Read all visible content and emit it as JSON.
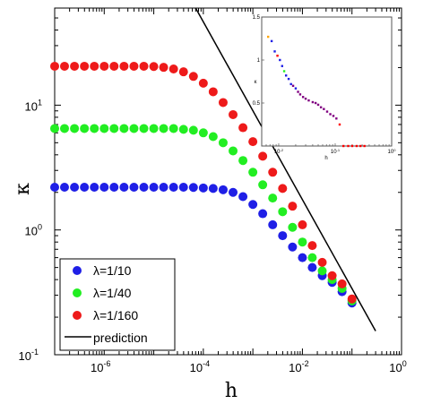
{
  "chart_data": [
    {
      "type": "scatter",
      "x_scale": "log",
      "y_scale": "log",
      "xlabel": "h",
      "ylabel": "κ",
      "xlim": [
        1e-07,
        1
      ],
      "ylim": [
        0.1,
        60
      ],
      "x_ticks": [
        {
          "base": "10",
          "exp": "-6"
        },
        {
          "base": "10",
          "exp": "-4"
        },
        {
          "base": "10",
          "exp": "-2"
        },
        {
          "base": "10",
          "exp": "0"
        }
      ],
      "y_ticks": [
        {
          "base": "10",
          "exp": "-1"
        },
        {
          "base": "10",
          "exp": "0"
        },
        {
          "base": "10",
          "exp": "1"
        }
      ],
      "legend_position": "bottom-left",
      "colors": {
        "lambda_10": "#1f1fe6",
        "lambda_40": "#22ee22",
        "lambda_160": "#ee1a1a",
        "prediction": "#000000"
      },
      "series": [
        {
          "name": "λ=1/10",
          "x": [
            1e-07,
            1.58e-07,
            2.51e-07,
            3.98e-07,
            6.31e-07,
            1e-06,
            1.58e-06,
            2.51e-06,
            3.98e-06,
            6.31e-06,
            1e-05,
            1.58e-05,
            2.51e-05,
            3.98e-05,
            6.31e-05,
            0.0001,
            0.000158,
            0.000251,
            0.000398,
            0.000631,
            0.001,
            0.00158,
            0.00251,
            0.00398,
            0.00631,
            0.01,
            0.0158,
            0.0251,
            0.0398,
            0.0631,
            0.1
          ],
          "y": [
            2.2,
            2.2,
            2.2,
            2.2,
            2.2,
            2.2,
            2.2,
            2.2,
            2.2,
            2.2,
            2.2,
            2.2,
            2.2,
            2.2,
            2.19,
            2.17,
            2.15,
            2.1,
            2.0,
            1.85,
            1.6,
            1.35,
            1.1,
            0.9,
            0.73,
            0.6,
            0.5,
            0.43,
            0.38,
            0.32,
            0.26
          ]
        },
        {
          "name": "λ=1/40",
          "x": [
            1e-07,
            1.58e-07,
            2.51e-07,
            3.98e-07,
            6.31e-07,
            1e-06,
            1.58e-06,
            2.51e-06,
            3.98e-06,
            6.31e-06,
            1e-05,
            1.58e-05,
            2.51e-05,
            3.98e-05,
            6.31e-05,
            0.0001,
            0.000158,
            0.000251,
            0.000398,
            0.000631,
            0.001,
            0.00158,
            0.00251,
            0.00398,
            0.00631,
            0.01,
            0.0158,
            0.0251,
            0.0398,
            0.0631,
            0.1
          ],
          "y": [
            6.5,
            6.5,
            6.5,
            6.5,
            6.5,
            6.5,
            6.5,
            6.5,
            6.5,
            6.5,
            6.5,
            6.5,
            6.5,
            6.4,
            6.3,
            6.0,
            5.6,
            5.0,
            4.3,
            3.6,
            2.9,
            2.3,
            1.8,
            1.4,
            1.05,
            0.8,
            0.6,
            0.47,
            0.4,
            0.34,
            0.27
          ]
        },
        {
          "name": "λ=1/160",
          "x": [
            1e-07,
            1.58e-07,
            2.51e-07,
            3.98e-07,
            6.31e-07,
            1e-06,
            1.58e-06,
            2.51e-06,
            3.98e-06,
            6.31e-06,
            1e-05,
            1.58e-05,
            2.51e-05,
            3.98e-05,
            6.31e-05,
            0.0001,
            0.000158,
            0.000251,
            0.000398,
            0.000631,
            0.001,
            0.00158,
            0.00251,
            0.00398,
            0.00631,
            0.01,
            0.0158,
            0.0251,
            0.0398,
            0.0631,
            0.1
          ],
          "y": [
            20.5,
            20.5,
            20.5,
            20.5,
            20.5,
            20.5,
            20.5,
            20.5,
            20.5,
            20.5,
            20.4,
            20.1,
            19.5,
            18.5,
            17.0,
            15.0,
            12.8,
            10.5,
            8.4,
            6.6,
            5.1,
            3.9,
            2.9,
            2.15,
            1.55,
            1.1,
            0.75,
            0.55,
            0.43,
            0.37,
            0.28
          ]
        },
        {
          "name": "prediction",
          "type": "line",
          "x": [
            7e-05,
            0.3
          ],
          "y": [
            60,
            0.155
          ]
        }
      ]
    },
    {
      "type": "scatter",
      "placement": "inset top-right",
      "x_scale": "log",
      "xlabel": "h",
      "ylabel": "κ",
      "x_ticks": [
        {
          "base": "10",
          "exp": "-2"
        },
        {
          "base": "10",
          "exp": "-1"
        },
        {
          "base": "10",
          "exp": "0"
        }
      ],
      "y_ticks": [
        "0.5",
        "1",
        "1.5"
      ],
      "xlim": [
        0.005,
        1
      ],
      "ylim": [
        0,
        1.5
      ],
      "points": [
        {
          "x": 0.0065,
          "y": 1.27,
          "color": "orange"
        },
        {
          "x": 0.0075,
          "y": 1.22,
          "color": "#1f1fe6"
        },
        {
          "x": 0.0085,
          "y": 1.1,
          "color": "#1f1fe6"
        },
        {
          "x": 0.0095,
          "y": 1.05,
          "color": "red"
        },
        {
          "x": 0.0105,
          "y": 1.0,
          "color": "#1f1fe6"
        },
        {
          "x": 0.0115,
          "y": 0.93,
          "color": "#1f1fe6"
        },
        {
          "x": 0.0125,
          "y": 0.87,
          "color": "#22ee22"
        },
        {
          "x": 0.0135,
          "y": 0.82,
          "color": "#1f1fe6"
        },
        {
          "x": 0.015,
          "y": 0.78,
          "color": "#1f1fe6"
        },
        {
          "x": 0.0165,
          "y": 0.72,
          "color": "#1f1fe6"
        },
        {
          "x": 0.018,
          "y": 0.7,
          "color": "purple"
        },
        {
          "x": 0.02,
          "y": 0.67,
          "color": "#1f1fe6"
        },
        {
          "x": 0.022,
          "y": 0.63,
          "color": "purple"
        },
        {
          "x": 0.024,
          "y": 0.6,
          "color": "purple"
        },
        {
          "x": 0.027,
          "y": 0.57,
          "color": "purple"
        },
        {
          "x": 0.03,
          "y": 0.55,
          "color": "purple"
        },
        {
          "x": 0.034,
          "y": 0.53,
          "color": "purple"
        },
        {
          "x": 0.04,
          "y": 0.51,
          "color": "purple"
        },
        {
          "x": 0.045,
          "y": 0.5,
          "color": "purple"
        },
        {
          "x": 0.05,
          "y": 0.48,
          "color": "purple"
        },
        {
          "x": 0.056,
          "y": 0.45,
          "color": "purple"
        },
        {
          "x": 0.063,
          "y": 0.43,
          "color": "purple"
        },
        {
          "x": 0.072,
          "y": 0.4,
          "color": "purple"
        },
        {
          "x": 0.082,
          "y": 0.37,
          "color": "purple"
        },
        {
          "x": 0.093,
          "y": 0.35,
          "color": "purple"
        },
        {
          "x": 0.105,
          "y": 0.32,
          "color": "purple"
        },
        {
          "x": 0.12,
          "y": 0.25,
          "color": "red"
        },
        {
          "x": 0.14,
          "y": 0.0,
          "color": "red"
        },
        {
          "x": 0.17,
          "y": 0.0,
          "color": "red"
        },
        {
          "x": 0.2,
          "y": 0.0,
          "color": "red"
        },
        {
          "x": 0.24,
          "y": 0.0,
          "color": "red"
        },
        {
          "x": 0.28,
          "y": 0.0,
          "color": "red"
        },
        {
          "x": 0.33,
          "y": 0.0,
          "color": "red"
        }
      ]
    }
  ]
}
